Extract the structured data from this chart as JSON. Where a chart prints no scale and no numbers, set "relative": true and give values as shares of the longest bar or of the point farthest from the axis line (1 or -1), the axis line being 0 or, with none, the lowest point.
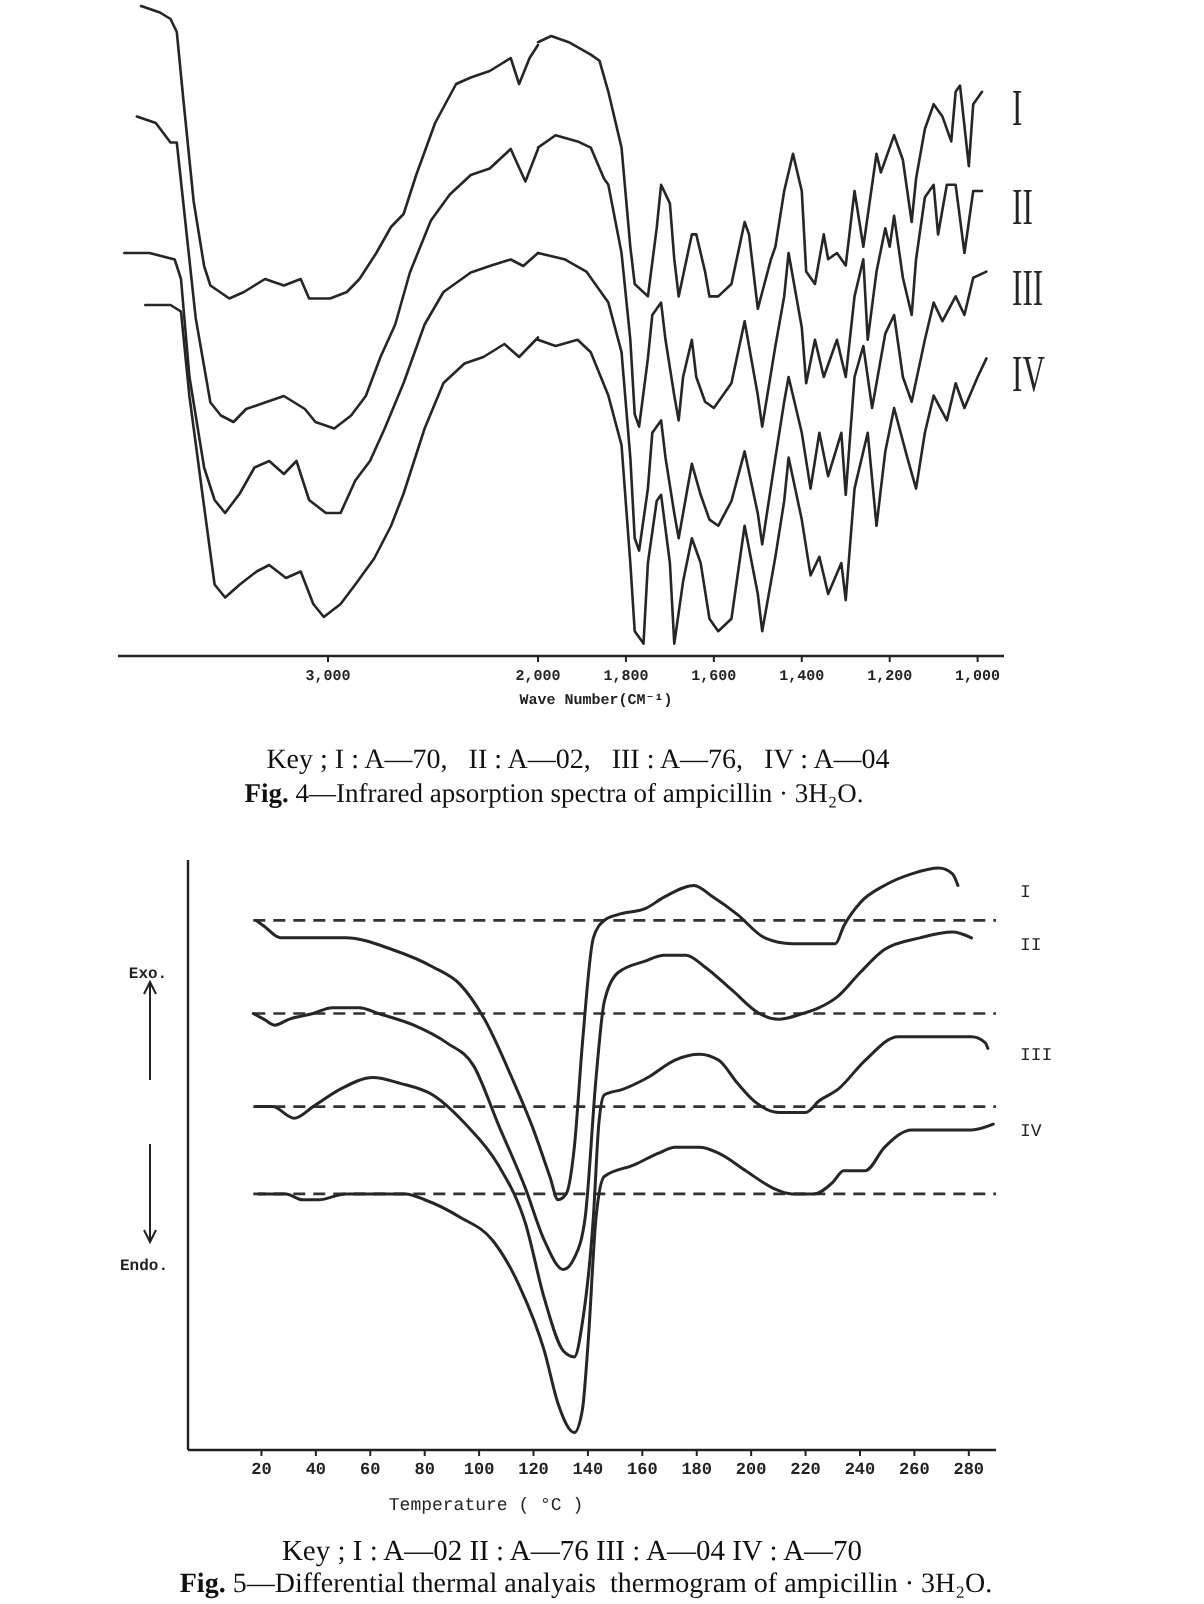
{
  "chart_data": [
    {
      "type": "line",
      "relative": true,
      "xlim": [
        4000,
        2000
      ],
      "xticks": [
        {
          "value": 3000,
          "label": "3,000"
        },
        {
          "value": 2000,
          "label": "2,000"
        }
      ],
      "series": [
        {
          "color": "#262626",
          "x": [
            3890,
            3800,
            3750,
            3720,
            3690,
            3640,
            3590,
            3560,
            3470,
            3400,
            3300,
            3210,
            3130,
            3090,
            2990,
            2910,
            2850,
            2770,
            2700,
            2640,
            2580,
            2490,
            2390,
            2320,
            2230,
            2130,
            2090,
            2040,
            2000
          ],
          "values": [
            1.0,
            0.99,
            0.98,
            0.96,
            0.86,
            0.7,
            0.6,
            0.57,
            0.55,
            0.56,
            0.58,
            0.57,
            0.58,
            0.55,
            0.55,
            0.56,
            0.58,
            0.62,
            0.66,
            0.68,
            0.74,
            0.82,
            0.88,
            0.89,
            0.9,
            0.92,
            0.88,
            0.92,
            0.94
          ]
        },
        {
          "color": "#262626",
          "x": [
            3910,
            3820,
            3750,
            3720,
            3680,
            3630,
            3560,
            3510,
            3450,
            3390,
            3300,
            3210,
            3110,
            3060,
            2970,
            2890,
            2820,
            2750,
            2680,
            2610,
            2510,
            2420,
            2320,
            2230,
            2130,
            2060,
            2000
          ],
          "values": [
            0.83,
            0.82,
            0.79,
            0.79,
            0.67,
            0.52,
            0.39,
            0.37,
            0.36,
            0.38,
            0.39,
            0.4,
            0.38,
            0.36,
            0.35,
            0.37,
            0.4,
            0.46,
            0.51,
            0.59,
            0.67,
            0.71,
            0.74,
            0.75,
            0.78,
            0.73,
            0.78
          ]
        },
        {
          "color": "#262626",
          "x": [
            3970,
            3850,
            3730,
            3700,
            3660,
            3590,
            3540,
            3490,
            3420,
            3350,
            3280,
            3210,
            3150,
            3090,
            3010,
            2940,
            2870,
            2800,
            2730,
            2640,
            2540,
            2450,
            2320,
            2230,
            2130,
            2070,
            2000
          ],
          "values": [
            0.62,
            0.62,
            0.61,
            0.58,
            0.43,
            0.29,
            0.24,
            0.22,
            0.25,
            0.29,
            0.3,
            0.28,
            0.3,
            0.24,
            0.22,
            0.22,
            0.27,
            0.3,
            0.35,
            0.42,
            0.51,
            0.56,
            0.59,
            0.6,
            0.61,
            0.6,
            0.62
          ]
        },
        {
          "color": "#262626",
          "x": [
            3870,
            3750,
            3700,
            3660,
            3590,
            3540,
            3490,
            3420,
            3340,
            3280,
            3200,
            3130,
            3070,
            3020,
            2940,
            2870,
            2780,
            2700,
            2640,
            2540,
            2450,
            2350,
            2260,
            2160,
            2090,
            2000
          ],
          "values": [
            0.54,
            0.54,
            0.53,
            0.4,
            0.23,
            0.11,
            0.09,
            0.11,
            0.13,
            0.14,
            0.12,
            0.13,
            0.08,
            0.06,
            0.08,
            0.11,
            0.15,
            0.2,
            0.25,
            0.35,
            0.42,
            0.45,
            0.46,
            0.48,
            0.46,
            0.49
          ]
        }
      ]
    },
    {
      "type": "line",
      "relative": true,
      "xlim": [
        2000,
        940
      ],
      "xticks": [
        {
          "value": 1800,
          "label": "1,800"
        },
        {
          "value": 1600,
          "label": "1,600"
        },
        {
          "value": 1400,
          "label": "1,400"
        },
        {
          "value": 1200,
          "label": "1,200"
        },
        {
          "value": 1000,
          "label": "1,000"
        }
      ],
      "xlabel": "Wave Number(CM⁻¹)",
      "series": [
        {
          "name": "I",
          "color": "#262626",
          "x": [
            2000,
            1970,
            1930,
            1880,
            1860,
            1840,
            1810,
            1790,
            1780,
            1750,
            1730,
            1720,
            1700,
            1690,
            1680,
            1650,
            1640,
            1620,
            1610,
            1590,
            1560,
            1530,
            1520,
            1500,
            1470,
            1460,
            1440,
            1420,
            1400,
            1390,
            1370,
            1350,
            1340,
            1320,
            1300,
            1280,
            1260,
            1230,
            1220,
            1200,
            1190,
            1170,
            1150,
            1140,
            1120,
            1100,
            1080,
            1060,
            1050,
            1040,
            1020,
            1010,
            990
          ],
          "values": [
            0.99,
            1.0,
            0.99,
            0.97,
            0.96,
            0.91,
            0.82,
            0.66,
            0.6,
            0.58,
            0.69,
            0.76,
            0.73,
            0.64,
            0.58,
            0.68,
            0.68,
            0.62,
            0.58,
            0.58,
            0.6,
            0.7,
            0.68,
            0.56,
            0.64,
            0.66,
            0.75,
            0.81,
            0.75,
            0.62,
            0.6,
            0.68,
            0.64,
            0.65,
            0.63,
            0.75,
            0.66,
            0.81,
            0.78,
            0.82,
            0.84,
            0.8,
            0.7,
            0.77,
            0.85,
            0.89,
            0.87,
            0.83,
            0.91,
            0.92,
            0.79,
            0.89,
            0.91
          ]
        },
        {
          "name": "II",
          "color": "#262626",
          "x": [
            2000,
            1960,
            1910,
            1880,
            1850,
            1840,
            1810,
            1790,
            1780,
            1770,
            1750,
            1740,
            1720,
            1710,
            1690,
            1680,
            1670,
            1650,
            1640,
            1620,
            1600,
            1560,
            1530,
            1500,
            1490,
            1460,
            1440,
            1430,
            1400,
            1390,
            1370,
            1350,
            1320,
            1300,
            1280,
            1260,
            1250,
            1230,
            1210,
            1200,
            1190,
            1170,
            1150,
            1140,
            1120,
            1100,
            1090,
            1070,
            1050,
            1030,
            1010,
            990
          ],
          "values": [
            0.82,
            0.84,
            0.83,
            0.82,
            0.77,
            0.76,
            0.65,
            0.51,
            0.39,
            0.37,
            0.48,
            0.55,
            0.57,
            0.51,
            0.42,
            0.38,
            0.45,
            0.51,
            0.45,
            0.41,
            0.4,
            0.44,
            0.54,
            0.42,
            0.37,
            0.5,
            0.58,
            0.65,
            0.53,
            0.44,
            0.51,
            0.45,
            0.51,
            0.45,
            0.58,
            0.64,
            0.51,
            0.62,
            0.69,
            0.66,
            0.71,
            0.61,
            0.55,
            0.64,
            0.74,
            0.76,
            0.68,
            0.76,
            0.76,
            0.65,
            0.75,
            0.75
          ]
        },
        {
          "name": "III",
          "color": "#262626",
          "x": [
            2000,
            1940,
            1890,
            1840,
            1810,
            1790,
            1780,
            1770,
            1750,
            1740,
            1720,
            1710,
            1690,
            1680,
            1660,
            1650,
            1630,
            1610,
            1590,
            1560,
            1530,
            1500,
            1490,
            1460,
            1440,
            1430,
            1400,
            1380,
            1360,
            1340,
            1310,
            1300,
            1280,
            1260,
            1240,
            1210,
            1190,
            1170,
            1150,
            1120,
            1100,
            1080,
            1050,
            1030,
            1010,
            980
          ],
          "values": [
            0.65,
            0.64,
            0.62,
            0.57,
            0.49,
            0.32,
            0.19,
            0.17,
            0.27,
            0.36,
            0.38,
            0.32,
            0.23,
            0.19,
            0.27,
            0.31,
            0.26,
            0.22,
            0.21,
            0.25,
            0.33,
            0.23,
            0.18,
            0.32,
            0.41,
            0.45,
            0.36,
            0.27,
            0.36,
            0.29,
            0.36,
            0.26,
            0.45,
            0.5,
            0.4,
            0.52,
            0.55,
            0.45,
            0.41,
            0.51,
            0.57,
            0.54,
            0.58,
            0.55,
            0.61,
            0.62
          ]
        },
        {
          "name": "IV",
          "color": "#262626",
          "x": [
            2000,
            1960,
            1910,
            1880,
            1840,
            1810,
            1790,
            1780,
            1760,
            1750,
            1730,
            1720,
            1700,
            1690,
            1670,
            1650,
            1630,
            1610,
            1590,
            1560,
            1530,
            1500,
            1490,
            1460,
            1440,
            1430,
            1400,
            1380,
            1360,
            1340,
            1310,
            1300,
            1280,
            1250,
            1230,
            1210,
            1190,
            1160,
            1140,
            1120,
            1100,
            1070,
            1050,
            1030,
            1000,
            980
          ],
          "values": [
            0.51,
            0.5,
            0.51,
            0.49,
            0.42,
            0.34,
            0.15,
            0.04,
            0.02,
            0.15,
            0.25,
            0.26,
            0.15,
            0.02,
            0.12,
            0.19,
            0.15,
            0.06,
            0.04,
            0.06,
            0.21,
            0.1,
            0.04,
            0.16,
            0.25,
            0.32,
            0.22,
            0.13,
            0.16,
            0.1,
            0.15,
            0.09,
            0.27,
            0.36,
            0.21,
            0.33,
            0.4,
            0.32,
            0.27,
            0.36,
            0.42,
            0.38,
            0.44,
            0.4,
            0.45,
            0.48
          ]
        }
      ],
      "annotations": [
        "Key ; I : A—70,   II : A—02,   III : A—76,   IV : A—04",
        "Fig. 4—Infrared apsorption spectra of ampicillin · 3H₂O."
      ]
    },
    {
      "type": "line",
      "relative": true,
      "xlim": [
        -7,
        290
      ],
      "xticks": [
        20,
        40,
        60,
        80,
        100,
        120,
        140,
        160,
        180,
        200,
        220,
        240,
        260,
        280
      ],
      "xlabel": "Temperature ( °C )",
      "series": [
        {
          "name": "I",
          "color": "#262626",
          "x": [
            18,
            21,
            27,
            32,
            51,
            68,
            83,
            93,
            102,
            112,
            120,
            126,
            129,
            132,
            135,
            138,
            142,
            146,
            151,
            161,
            168,
            179,
            186,
            195,
            205,
            215,
            225,
            231,
            234,
            240,
            249,
            259,
            269,
            274,
            276
          ],
          "values": [
            0.91,
            0.9,
            0.88,
            0.88,
            0.88,
            0.86,
            0.83,
            0.8,
            0.74,
            0.64,
            0.55,
            0.47,
            0.43,
            0.44,
            0.52,
            0.7,
            0.88,
            0.91,
            0.92,
            0.93,
            0.95,
            0.97,
            0.95,
            0.92,
            0.88,
            0.87,
            0.87,
            0.87,
            0.9,
            0.94,
            0.97,
            0.99,
            1.0,
            0.99,
            0.97
          ]
        },
        {
          "name": "II",
          "color": "#262626",
          "x": [
            17,
            21,
            25,
            30,
            39,
            46,
            56,
            63,
            76,
            88,
            98,
            107,
            117,
            124,
            131,
            135,
            139,
            143,
            146,
            151,
            161,
            168,
            176,
            183,
            193,
            203,
            210,
            219,
            225,
            232,
            240,
            249,
            262,
            274,
            281
          ],
          "values": [
            0.75,
            0.74,
            0.73,
            0.74,
            0.75,
            0.76,
            0.76,
            0.75,
            0.73,
            0.7,
            0.66,
            0.56,
            0.45,
            0.36,
            0.31,
            0.33,
            0.4,
            0.64,
            0.77,
            0.82,
            0.84,
            0.85,
            0.85,
            0.83,
            0.79,
            0.75,
            0.74,
            0.75,
            0.76,
            0.78,
            0.82,
            0.86,
            0.88,
            0.89,
            0.88
          ]
        },
        {
          "name": "III",
          "color": "#262626",
          "x": [
            18,
            24,
            32,
            39,
            49,
            61,
            71,
            83,
            95,
            107,
            117,
            124,
            131,
            135,
            138,
            142,
            144,
            146,
            153,
            162,
            172,
            181,
            188,
            195,
            201,
            210,
            220,
            225,
            232,
            242,
            254,
            267,
            281,
            286,
            287
          ],
          "values": [
            0.59,
            0.59,
            0.57,
            0.59,
            0.62,
            0.64,
            0.63,
            0.61,
            0.56,
            0.49,
            0.39,
            0.26,
            0.17,
            0.16,
            0.22,
            0.4,
            0.56,
            0.61,
            0.62,
            0.64,
            0.67,
            0.68,
            0.67,
            0.63,
            0.6,
            0.58,
            0.58,
            0.6,
            0.62,
            0.67,
            0.71,
            0.71,
            0.71,
            0.7,
            0.69
          ]
        },
        {
          "name": "IV",
          "color": "#262626",
          "x": [
            19,
            29,
            35,
            41,
            51,
            61,
            73,
            80,
            93,
            105,
            115,
            124,
            129,
            135,
            138,
            140,
            143,
            146,
            157,
            166,
            172,
            181,
            188,
            198,
            208,
            215,
            223,
            230,
            234,
            242,
            249,
            259,
            271,
            281,
            289
          ],
          "values": [
            0.44,
            0.44,
            0.43,
            0.43,
            0.44,
            0.44,
            0.44,
            0.43,
            0.4,
            0.36,
            0.28,
            0.17,
            0.08,
            0.03,
            0.07,
            0.18,
            0.4,
            0.47,
            0.49,
            0.51,
            0.52,
            0.52,
            0.51,
            0.48,
            0.45,
            0.44,
            0.44,
            0.46,
            0.48,
            0.48,
            0.52,
            0.55,
            0.55,
            0.55,
            0.56
          ]
        }
      ],
      "ref_lines": [
        {
          "axis": "y",
          "value": 0.91,
          "color": "#333333",
          "line_style": "dashed"
        },
        {
          "axis": "y",
          "value": 0.75,
          "color": "#333333",
          "line_style": "dashed"
        },
        {
          "axis": "y",
          "value": 0.59,
          "color": "#333333",
          "line_style": "dashed"
        },
        {
          "axis": "y",
          "value": 0.44,
          "color": "#333333",
          "line_style": "dashed"
        }
      ],
      "annotations": [
        "Exo.",
        "Endo.",
        "Key ; I : A—02 II : A—76 III : A—04 IV : A—70",
        "Fig. 5—Differential thermal analyais  thermogram of ampicillin · 3H₂O."
      ]
    }
  ]
}
